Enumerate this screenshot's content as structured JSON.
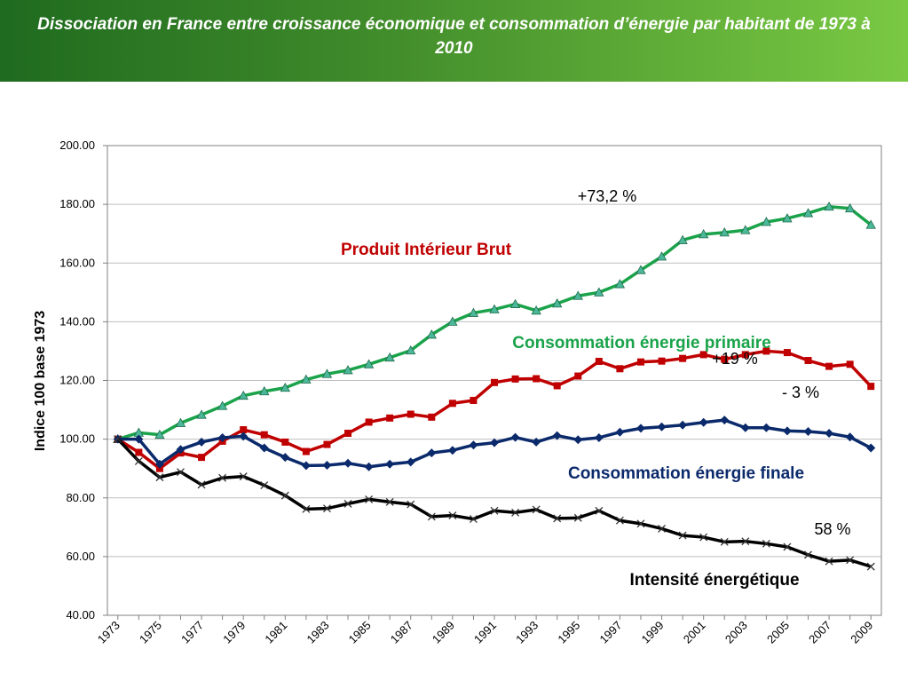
{
  "chart_data": {
    "type": "line",
    "title": "Dissociation en France entre croissance économique et consommation d’énergie par habitant de 1973 à 2010",
    "y_label": "Indice 100 base 1973",
    "categories": [
      "1973",
      null,
      "1975",
      null,
      "1977",
      null,
      "1979",
      null,
      "1981",
      null,
      "1983",
      null,
      "1985",
      null,
      "1987",
      null,
      "1989",
      null,
      "1991",
      null,
      "1993",
      null,
      "1995",
      null,
      "1997",
      null,
      "1999",
      null,
      "2001",
      null,
      "2003",
      null,
      "2005",
      null,
      "2007",
      null,
      "2009"
    ],
    "series": [
      {
        "color": "#1aa34a",
        "marker": "triangle",
        "values": [
          100,
          102.2,
          101.5,
          105.5,
          108.3,
          111.3,
          114.8,
          116.3,
          117.5,
          120.3,
          122.2,
          123.5,
          125.5,
          127.8,
          130.2,
          135.6,
          140,
          143,
          144.2,
          146,
          143.8,
          146.2,
          148.8,
          150,
          152.8,
          157.6,
          162.2,
          167.8,
          169.8,
          170.4,
          171.2,
          174,
          175.2,
          177,
          179.2,
          178.6,
          173
        ]
      },
      {
        "color": "#c00000",
        "marker": "square",
        "values": [
          100,
          95.5,
          90,
          95.3,
          93.8,
          99.3,
          103.2,
          101.5,
          99,
          95.8,
          98.2,
          102,
          105.8,
          107.2,
          108.5,
          107.5,
          112.2,
          113.2,
          119.3,
          120.5,
          120.6,
          118.2,
          121.5,
          126.5,
          124,
          126.3,
          126.6,
          127.5,
          128.8,
          127.2,
          128.8,
          130,
          129.5,
          126.8,
          124.8,
          125.5,
          118
        ]
      },
      {
        "color": "#0b2a6b",
        "marker": "diamond",
        "values": [
          100,
          100,
          91.5,
          96.5,
          99,
          100.5,
          101,
          97,
          93.8,
          91,
          91.1,
          91.8,
          90.6,
          91.5,
          92.2,
          95.3,
          96.2,
          98,
          98.8,
          100.6,
          99,
          101.2,
          99.8,
          100.5,
          102.4,
          103.7,
          104.2,
          104.8,
          105.7,
          106.5,
          103.9,
          103.9,
          102.8,
          102.6,
          102,
          100.7,
          97
        ]
      },
      {
        "color": "#000000",
        "marker": "x",
        "values": [
          100,
          92.5,
          87,
          88.8,
          84.5,
          86.8,
          87.3,
          84.3,
          80.8,
          76.2,
          76.4,
          78,
          79.5,
          78.6,
          77.8,
          73.6,
          74,
          72.8,
          75.6,
          75,
          76,
          73,
          73.2,
          75.6,
          72.3,
          71.2,
          69.5,
          67.2,
          66.6,
          65,
          65.2,
          64.4,
          63.3,
          60.6,
          58.4,
          58.8,
          56.6
        ]
      }
    ],
    "ylim": [
      40,
      200
    ],
    "yticks": [
      {
        "value": 40,
        "label": "40.00"
      },
      {
        "value": 60,
        "label": "60.00"
      },
      {
        "value": 80,
        "label": "80.00"
      },
      {
        "value": 100,
        "label": "100.00"
      },
      {
        "value": 120,
        "label": "120.00"
      },
      {
        "value": 140,
        "label": "140.00"
      },
      {
        "value": 160,
        "label": "160.00"
      },
      {
        "value": 180,
        "label": "180.00"
      },
      {
        "value": 200,
        "label": "200.00"
      }
    ],
    "grid": true,
    "annotations": [
      {
        "text": "+73,2 %",
        "color": "#000000"
      },
      {
        "text": "Produit Intérieur Brut",
        "color": "#c00000"
      },
      {
        "text": "Consommation énergie primaire",
        "color": "#1aa34a"
      },
      {
        "text": "+19 %",
        "color": "#000000"
      },
      {
        "text": "- 3 %",
        "color": "#000000"
      },
      {
        "text": "Consommation énergie finale",
        "color": "#0b2a6b"
      },
      {
        "text": "58 %",
        "color": "#000000"
      },
      {
        "text": "Intensité énergétique",
        "color": "#000000"
      }
    ]
  }
}
